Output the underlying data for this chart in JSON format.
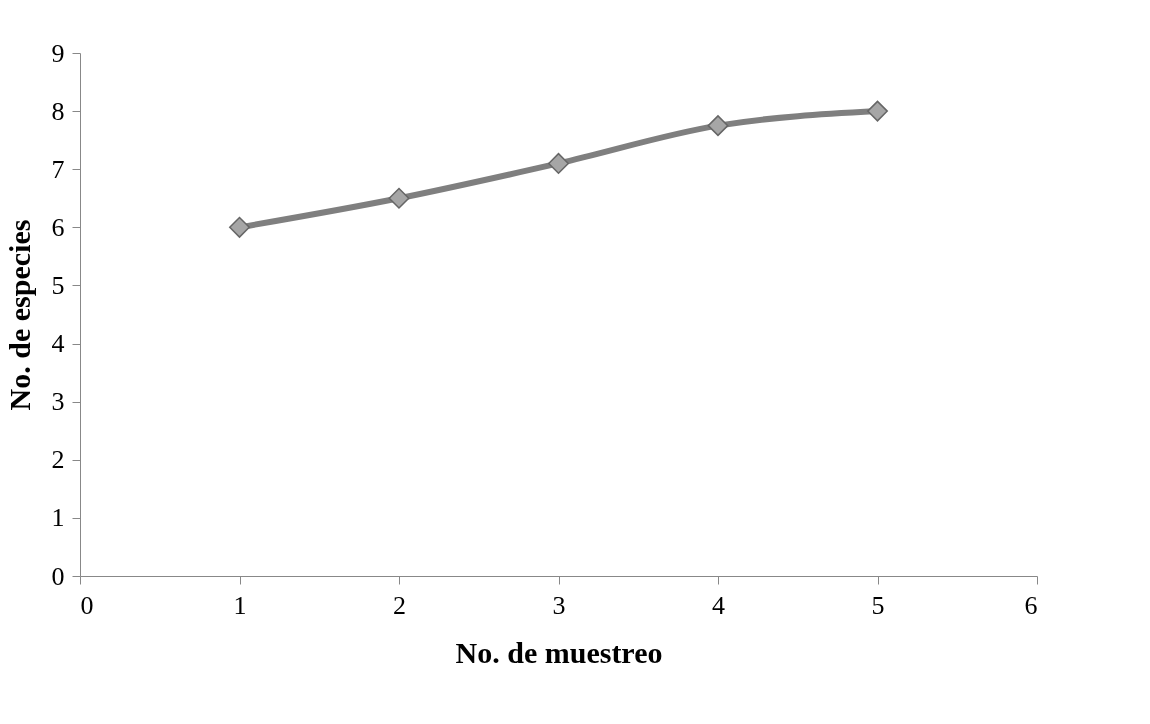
{
  "chart_data": {
    "type": "line",
    "xlabel": "No. de muestreo",
    "ylabel": "No. de especies",
    "x": [
      1,
      2,
      3,
      4,
      5
    ],
    "series": [
      {
        "color": "#7f7f7f",
        "values": [
          6.0,
          6.5,
          7.1,
          7.75,
          8.0
        ]
      }
    ],
    "xlim": [
      0,
      6
    ],
    "xticks": [
      0,
      1,
      2,
      3,
      4,
      5,
      6
    ],
    "ylim": [
      0,
      9
    ],
    "yticks": [
      0,
      1,
      2,
      3,
      4,
      5,
      6,
      7,
      8,
      9
    ],
    "grid": false,
    "legend": false,
    "marker": "diamond",
    "line_style": "solid"
  }
}
